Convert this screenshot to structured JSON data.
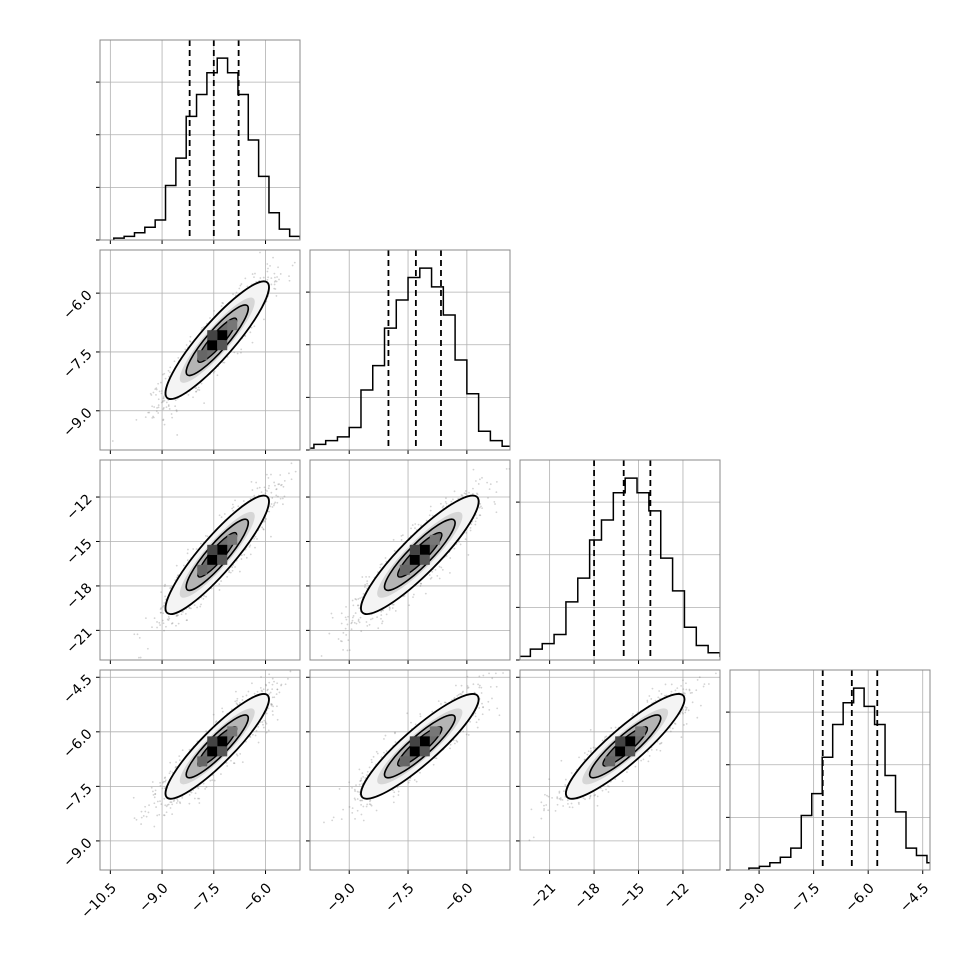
{
  "chart_data": {
    "type": "corner",
    "n_params": 4,
    "grid": true,
    "colors": {
      "line": "#000000",
      "points": "#808080",
      "grid": "#b0b0b0"
    },
    "ranges": [
      [
        -10.8,
        -5.0
      ],
      [
        -10.0,
        -4.9
      ],
      [
        -23.0,
        -9.5
      ],
      [
        -9.8,
        -4.3
      ]
    ],
    "ticks": [
      [
        -10.5,
        -9.0,
        -7.5,
        -6.0
      ],
      [
        -9.0,
        -7.5,
        -6.0
      ],
      [
        -21,
        -18,
        -15,
        -12
      ],
      [
        -9.0,
        -7.5,
        -6.0,
        -4.5
      ]
    ],
    "tick_labels": [
      [
        "−10.5",
        "−9.0",
        "−7.5",
        "−6.0"
      ],
      [
        "−9.0",
        "−7.5",
        "−6.0"
      ],
      [
        "−21",
        "−18",
        "−15",
        "−12"
      ],
      [
        "−9.0",
        "−7.5",
        "−6.0",
        "−4.5"
      ]
    ],
    "means": [
      -7.4,
      -7.2,
      -15.9,
      -6.4
    ],
    "sigmas": [
      0.75,
      0.75,
      2.0,
      0.72
    ],
    "quantiles": [
      [
        -8.2,
        -7.5,
        -6.78
      ],
      [
        -8.0,
        -7.3,
        -6.66
      ],
      [
        -18.0,
        -16.0,
        -14.2
      ],
      [
        -7.25,
        -6.45,
        -5.75
      ]
    ],
    "histograms": [
      [
        0.01,
        0.02,
        0.04,
        0.07,
        0.11,
        0.3,
        0.45,
        0.68,
        0.8,
        0.92,
        1.0,
        0.92,
        0.8,
        0.55,
        0.35,
        0.15,
        0.06,
        0.02,
        0.01,
        0.005
      ],
      [
        0.01,
        0.03,
        0.05,
        0.07,
        0.12,
        0.32,
        0.45,
        0.65,
        0.8,
        0.92,
        0.97,
        0.87,
        0.72,
        0.48,
        0.3,
        0.1,
        0.05,
        0.02,
        0.01,
        0.005
      ],
      [
        0.01,
        0.02,
        0.06,
        0.09,
        0.14,
        0.32,
        0.45,
        0.66,
        0.77,
        0.92,
        1.0,
        0.92,
        0.82,
        0.56,
        0.38,
        0.18,
        0.08,
        0.04,
        0.02,
        0.01
      ],
      [
        0.01,
        0.02,
        0.04,
        0.07,
        0.12,
        0.3,
        0.42,
        0.62,
        0.8,
        0.92,
        1.0,
        0.9,
        0.8,
        0.52,
        0.32,
        0.12,
        0.08,
        0.04,
        0.02,
        0.01
      ]
    ]
  }
}
